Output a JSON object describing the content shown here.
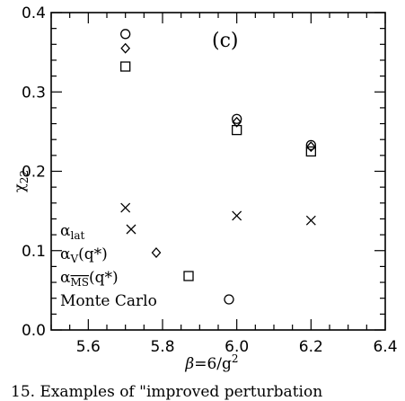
{
  "chart_data": {
    "type": "scatter",
    "panel_label": "(c)",
    "xlabel": "β=6/g²",
    "ylabel": "χ₂₂",
    "xlim": [
      5.5,
      6.4
    ],
    "ylim": [
      0.0,
      0.4
    ],
    "x_ticks": [
      "5.6",
      "5.8",
      "6.0",
      "6.2",
      "6.4"
    ],
    "y_ticks": [
      "0.0",
      "0.1",
      "0.2",
      "0.3",
      "0.4"
    ],
    "grid": false,
    "legend_position": "bottom-left",
    "series": [
      {
        "name": "α_lat",
        "marker": "cross",
        "points": [
          [
            5.7,
            0.154
          ],
          [
            6.0,
            0.144
          ],
          [
            6.2,
            0.138
          ]
        ]
      },
      {
        "name": "α_V(q*)",
        "marker": "diamond",
        "points": [
          [
            5.7,
            0.355
          ],
          [
            6.0,
            0.262
          ],
          [
            6.2,
            0.231
          ]
        ]
      },
      {
        "name": "α_MS(q*)",
        "marker": "square",
        "points": [
          [
            5.7,
            0.332
          ],
          [
            6.0,
            0.252
          ],
          [
            6.2,
            0.225
          ]
        ]
      },
      {
        "name": "Monte Carlo",
        "marker": "circle",
        "points": [
          [
            5.7,
            0.373
          ],
          [
            6.0,
            0.266
          ],
          [
            6.2,
            0.233
          ]
        ]
      }
    ],
    "legend": [
      {
        "label": "α_lat",
        "marker": "cross"
      },
      {
        "label": "α_V(q*)",
        "marker": "diamond"
      },
      {
        "label": "α_MS(q*)",
        "marker": "square"
      },
      {
        "label": "Monte Carlo",
        "marker": "circle"
      }
    ]
  },
  "caption": "15.    Examples of \"improved perturbation"
}
